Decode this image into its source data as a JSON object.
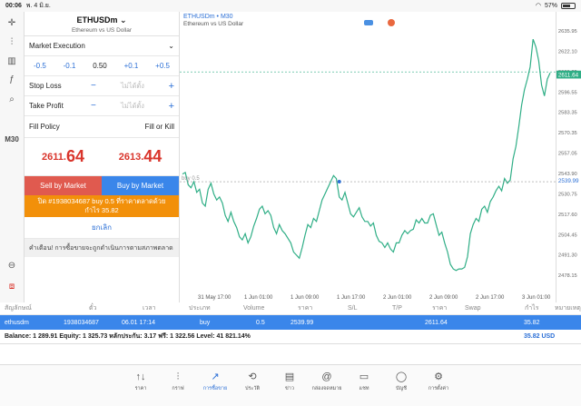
{
  "status": {
    "time": "00:06",
    "date": "พ. 4 มิ.ย.",
    "battery": "57%"
  },
  "toolbar": {
    "timeframe": "M30"
  },
  "symbol": {
    "name": "ETHUSDm",
    "description": "Ethereum vs US Dollar"
  },
  "order": {
    "type": "Market Execution",
    "vol_minus2": "-0.5",
    "vol_minus1": "-0.1",
    "volume": "0.50",
    "vol_plus1": "+0.1",
    "vol_plus2": "+0.5",
    "stop_loss_label": "Stop Loss",
    "take_profit_label": "Take Profit",
    "not_set": "ไม่ได้ตั้ง",
    "minus": "−",
    "plus": "+",
    "fill_policy_label": "Fill Policy",
    "fill_policy_value": "Fill or Kill"
  },
  "quotes": {
    "bid_small": "2611.",
    "bid_big": "64",
    "ask_small": "2613.",
    "ask_big": "44"
  },
  "buttons": {
    "sell": "Sell by Market",
    "buy": "Buy by Market",
    "close_line1": "ปิด #1938034687 buy 0.5 ที่ราคาตลาดด้วย",
    "close_line2": "กำไร 35.82",
    "cancel": "ยกเลิก"
  },
  "warning": "คำเตือน! การซื้อขายจะถูกดำเนินการตามสภาพตลาด",
  "chart": {
    "title": "ETHUSDm • M30",
    "subtitle": "Ethereum vs US Dollar",
    "current_price_label": "2611.64",
    "entry_label": "2539.99",
    "entry_tag": "buy 0.5",
    "y_ticks": [
      "2635.95",
      "2622.10",
      "2609.25",
      "2596.55",
      "2583.35",
      "2570.35",
      "2557.05",
      "2543.90",
      "2530.75",
      "2517.60",
      "2504.45",
      "2491.30",
      "2478.15"
    ],
    "x_ticks": [
      "31 May 17:00",
      "1 Jun 01:00",
      "1 Jun 09:00",
      "1 Jun 17:00",
      "2 Jun 01:00",
      "2 Jun 09:00",
      "2 Jun 17:00",
      "3 Jun 01:00"
    ]
  },
  "chart_data": {
    "type": "line",
    "title": "ETHUSDm • M30",
    "ylim": [
      2470,
      2645
    ],
    "x_count": 130,
    "values": [
      2545,
      2546,
      2538,
      2536,
      2540,
      2533,
      2535,
      2526,
      2524,
      2535,
      2539,
      2532,
      2528,
      2530,
      2526,
      2518,
      2514,
      2520,
      2514,
      2510,
      2504,
      2502,
      2506,
      2500,
      2504,
      2511,
      2516,
      2522,
      2524,
      2519,
      2521,
      2518,
      2510,
      2506,
      2512,
      2508,
      2506,
      2503,
      2500,
      2494,
      2492,
      2490,
      2497,
      2505,
      2512,
      2510,
      2516,
      2514,
      2521,
      2528,
      2532,
      2536,
      2540,
      2544,
      2542,
      2530,
      2528,
      2533,
      2526,
      2519,
      2517,
      2520,
      2523,
      2517,
      2514,
      2514,
      2511,
      2513,
      2505,
      2501,
      2500,
      2497,
      2500,
      2496,
      2494,
      2500,
      2500,
      2505,
      2508,
      2506,
      2508,
      2509,
      2515,
      2513,
      2516,
      2513,
      2513,
      2518,
      2519,
      2512,
      2505,
      2507,
      2500,
      2494,
      2486,
      2483,
      2482,
      2483,
      2483,
      2484,
      2491,
      2506,
      2512,
      2516,
      2514,
      2522,
      2524,
      2520,
      2527,
      2530,
      2534,
      2537,
      2534,
      2542,
      2539,
      2541,
      2555,
      2563,
      2576,
      2590,
      2600,
      2607,
      2615,
      2633,
      2628,
      2619,
      2603,
      2596,
      2607,
      2611
    ],
    "current_price": 2611.64,
    "entry_price": 2539.99,
    "grid": false
  },
  "table": {
    "headers": {
      "symbol": "สัญลักษณ์",
      "ticket": "ตั๋ว",
      "time": "เวลา",
      "type": "ประเภท",
      "volume": "Volume",
      "price": "ราคา",
      "sl": "S/L",
      "tp": "T/P",
      "cur_price": "ราคา",
      "swap": "Swap",
      "profit": "กำไร",
      "comment": "หมายเหตุ"
    },
    "row": {
      "symbol": "ethusdm",
      "ticket": "1938034687",
      "time": "06.01 17:14",
      "type": "buy",
      "volume": "0.5",
      "price": "2539.99",
      "cur_price": "2611.64",
      "profit": "35.82"
    },
    "balance": "Balance: 1 289.91 Equity: 1 325.73 หลักประกัน: 3.17 ฟรี: 1 322.56 Level: 41 821.14%",
    "total": "35.82  USD"
  },
  "tabs": [
    {
      "icon": "↑↓",
      "label": "ราคา"
    },
    {
      "icon": "⫶",
      "label": "กราฟ"
    },
    {
      "icon": "↗",
      "label": "การซื้อขาย"
    },
    {
      "icon": "⟲",
      "label": "ประวัติ"
    },
    {
      "icon": "▤",
      "label": "ข่าว"
    },
    {
      "icon": "@",
      "label": "กล่องจดหมาย"
    },
    {
      "icon": "▭",
      "label": "แชท"
    },
    {
      "icon": "◯",
      "label": "บัญชี"
    },
    {
      "icon": "⚙",
      "label": "การตั้งค่า"
    }
  ]
}
